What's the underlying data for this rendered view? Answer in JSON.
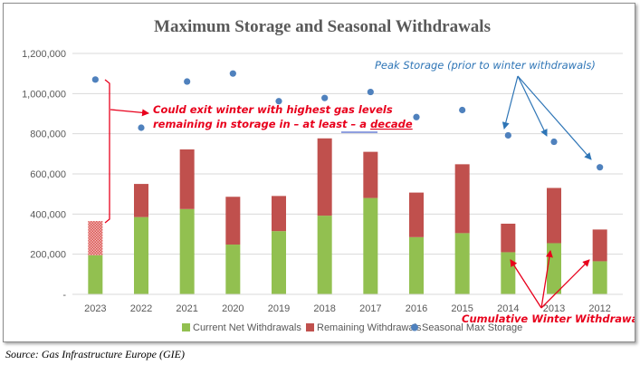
{
  "chart_data": {
    "type": "bar",
    "title": "Maximum Storage and Seasonal Withdrawals",
    "categories": [
      "2023",
      "2022",
      "2021",
      "2020",
      "2019",
      "2018",
      "2017",
      "2016",
      "2015",
      "2014",
      "2013",
      "2012"
    ],
    "series": [
      {
        "name": "Current Net Withdrawals",
        "kind": "stacked-bar",
        "color": "#92c050",
        "values": [
          195000,
          385000,
          425000,
          248000,
          315000,
          392000,
          480000,
          285000,
          305000,
          210000,
          255000,
          165000
        ]
      },
      {
        "name": "Remaining Withdrawals",
        "kind": "stacked-bar",
        "color": "#c0504d",
        "values": [
          170000,
          165000,
          297000,
          238000,
          175000,
          385000,
          230000,
          222000,
          343000,
          142000,
          275000,
          158000
        ]
      },
      {
        "name": "Seasonal Max Storage",
        "kind": "scatter",
        "color": "#4f81bd",
        "values": [
          1070000,
          830000,
          1060000,
          1100000,
          962000,
          978000,
          1008000,
          883000,
          918000,
          792000,
          760000,
          633000
        ]
      }
    ],
    "estimated_segment_category": "2023",
    "ylim": [
      0,
      1200000
    ],
    "yticks": [
      {
        "value": 0,
        "label": "-"
      },
      {
        "value": 200000,
        "label": "200,000"
      },
      {
        "value": 400000,
        "label": "400,000"
      },
      {
        "value": 600000,
        "label": "600,000"
      },
      {
        "value": 800000,
        "label": "800,000"
      },
      {
        "value": 1000000,
        "label": "1,000,000"
      },
      {
        "value": 1200000,
        "label": "1,200,000"
      }
    ],
    "grid": true,
    "legend": "bottom",
    "annotations": {
      "winter_line1": "Could exit winter with highest gas levels",
      "winter_line2_prefix": "remaining in storage in – at least – a ",
      "winter_line2_underlined": "decade",
      "peak_storage": "Peak Storage (prior to winter withdrawals)",
      "cumulative": "Cumulative Winter Withdrawals"
    }
  },
  "source": "Source: Gas Infrastructure Europe (GIE)",
  "colors": {
    "anno_red": "#e8001c",
    "anno_blue": "#2e75b6",
    "grid": "#d9d9d9"
  }
}
